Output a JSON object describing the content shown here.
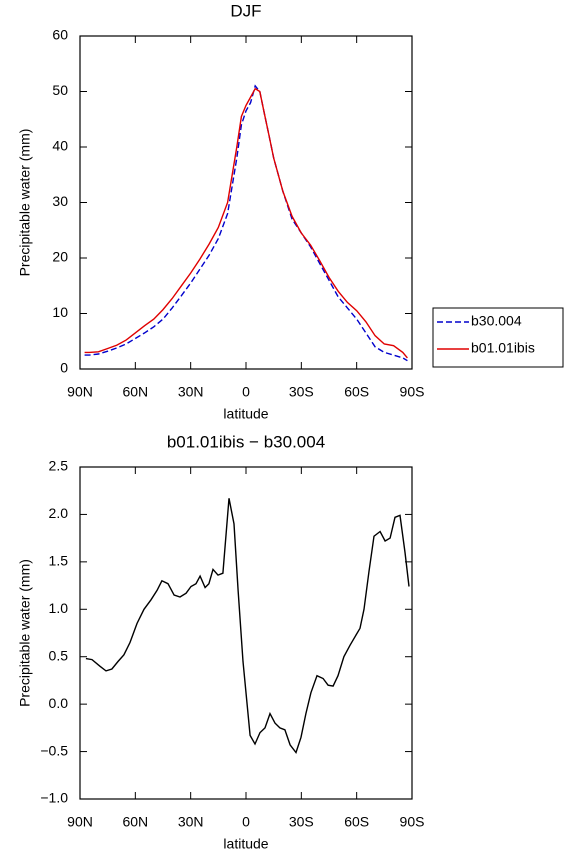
{
  "chart_data": [
    {
      "type": "line",
      "title": "DJF",
      "xlabel": "latitude",
      "ylabel": "Precipitable water (mm)",
      "x": [
        87.5,
        85,
        80,
        75,
        70,
        65,
        60,
        55,
        50,
        45,
        40,
        35,
        30,
        25,
        20,
        15,
        10,
        7.5,
        5,
        2.5,
        0,
        -2.5,
        -5,
        -7.5,
        -10,
        -12.5,
        -15,
        -20,
        -25,
        -30,
        -35,
        -40,
        -45,
        -50,
        -55,
        -60,
        -65,
        -70,
        -75,
        -80,
        -85,
        -87.5
      ],
      "series": [
        {
          "name": "b30.004",
          "color": "#0000cc",
          "dash": true,
          "values": [
            2.5,
            2.5,
            2.7,
            3.2,
            3.8,
            4.5,
            5.5,
            6.5,
            7.6,
            9,
            11,
            13.2,
            15.5,
            18,
            20.5,
            23.5,
            28,
            33,
            38,
            44,
            46.5,
            48,
            51,
            50,
            46,
            42,
            38,
            32,
            27,
            24.5,
            22,
            19,
            16,
            13,
            11,
            9,
            6.5,
            4,
            3,
            2.5,
            2,
            1.5
          ]
        },
        {
          "name": "b01.01ibis",
          "color": "#e00000",
          "dash": false,
          "values": [
            3,
            3,
            3.1,
            3.7,
            4.3,
            5.2,
            6.5,
            7.8,
            9,
            10.7,
            12.7,
            15,
            17.3,
            19.8,
            22.5,
            25.5,
            30,
            35,
            40,
            45.5,
            47.5,
            49,
            50.5,
            50,
            46,
            42,
            38,
            32,
            27.5,
            24.5,
            22.3,
            19.5,
            16.5,
            14,
            12,
            10.5,
            8.5,
            6,
            4.5,
            4.2,
            3,
            2
          ]
        }
      ],
      "xlim": [
        90,
        -90
      ],
      "xticks": [
        {
          "value": 90,
          "label": "90N"
        },
        {
          "value": 60,
          "label": "60N"
        },
        {
          "value": 30,
          "label": "30N"
        },
        0,
        {
          "value": -30,
          "label": "30S"
        },
        {
          "value": -60,
          "label": "60S"
        },
        {
          "value": -90,
          "label": "90S"
        }
      ],
      "ylim": [
        0,
        60
      ],
      "yticks": [
        0,
        10,
        20,
        30,
        40,
        50,
        60
      ],
      "legend": "right"
    },
    {
      "type": "line",
      "title": "b01.01ibis − b30.004",
      "xlabel": "latitude",
      "ylabel": "Precipitable water (mm)",
      "x": [
        86.8,
        83.5,
        79.2,
        75.9,
        72.7,
        69.4,
        66.2,
        62.9,
        59.1,
        55.3,
        51.5,
        48.2,
        45.6,
        42.3,
        39,
        35.8,
        32.5,
        29.8,
        27.1,
        24.9,
        22.2,
        20.1,
        17.9,
        15.2,
        12.5,
        9.2,
        6.5,
        4.3,
        1.6,
        -2.2,
        -4.9,
        -7.6,
        -10.3,
        -13,
        -15.7,
        -18.4,
        -21.1,
        -23.9,
        -27.1,
        -29.8,
        -32.5,
        -35.2,
        -38.5,
        -41.8,
        -44.5,
        -47.2,
        -49.9,
        -53.1,
        -56.4,
        -59.7,
        -61.8,
        -64,
        -66.7,
        -69.4,
        -72.7,
        -75.4,
        -78.1,
        -80.8,
        -83.5,
        -86.2,
        -88.4
      ],
      "values": [
        0.48,
        0.47,
        0.4,
        0.35,
        0.37,
        0.45,
        0.52,
        0.65,
        0.85,
        1.0,
        1.1,
        1.2,
        1.3,
        1.27,
        1.15,
        1.13,
        1.17,
        1.24,
        1.27,
        1.35,
        1.23,
        1.27,
        1.42,
        1.36,
        1.38,
        2.17,
        1.9,
        1.2,
        0.45,
        -0.33,
        -0.42,
        -0.3,
        -0.25,
        -0.1,
        -0.2,
        -0.25,
        -0.27,
        -0.43,
        -0.51,
        -0.35,
        -0.1,
        0.12,
        0.3,
        0.27,
        0.2,
        0.19,
        0.3,
        0.5,
        0.62,
        0.73,
        0.8,
        1.0,
        1.4,
        1.77,
        1.82,
        1.72,
        1.75,
        1.97,
        1.99,
        1.6,
        1.24
      ],
      "color": "#000000",
      "xlim": [
        90,
        -90
      ],
      "xticks": [
        {
          "value": 90,
          "label": "90N"
        },
        {
          "value": 60,
          "label": "60N"
        },
        {
          "value": 30,
          "label": "30N"
        },
        0,
        {
          "value": -30,
          "label": "30S"
        },
        {
          "value": -60,
          "label": "60S"
        },
        {
          "value": -90,
          "label": "90S"
        }
      ],
      "ylim": [
        -1,
        2.5
      ],
      "yticks": [
        {
          "value": -1,
          "label": "−1.0"
        },
        {
          "value": -0.5,
          "label": "−0.5"
        },
        {
          "value": 0,
          "label": "0.0"
        },
        0.5,
        {
          "value": 1,
          "label": "1.0"
        },
        1.5,
        {
          "value": 2,
          "label": "2.0"
        },
        2.5
      ]
    }
  ]
}
